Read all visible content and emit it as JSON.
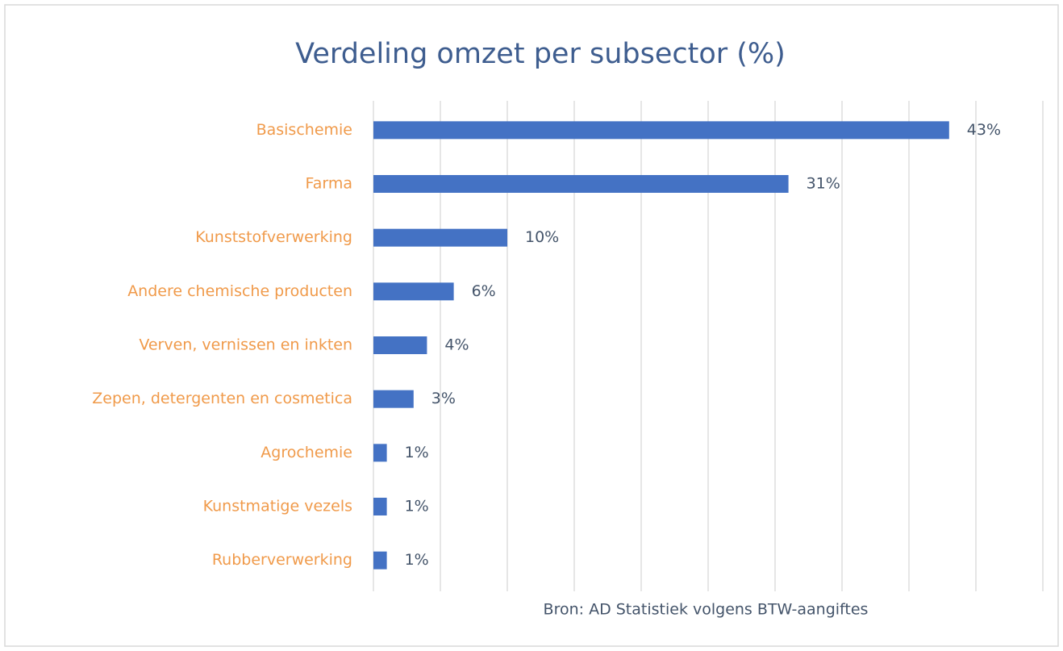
{
  "chart_data": {
    "type": "bar",
    "orientation": "horizontal",
    "title": "Verdeling omzet per subsector (%)",
    "categories": [
      "Basischemie",
      "Farma",
      "Kunststofverwerking",
      "Andere chemische producten",
      "Verven, vernissen en inkten",
      "Zepen, detergenten en cosmetica",
      "Agrochemie",
      "Kunstmatige vezels",
      "Rubberverwerking"
    ],
    "values": [
      43,
      31,
      10,
      6,
      4,
      3,
      1,
      1,
      1
    ],
    "value_labels": [
      "43%",
      "31%",
      "10%",
      "6%",
      "4%",
      "3%",
      "1%",
      "1%",
      "1%"
    ],
    "color": "#4472c4",
    "xlim": [
      0,
      50
    ],
    "xticks": [
      0,
      5,
      10,
      15,
      20,
      25,
      30,
      35,
      40,
      45,
      50
    ],
    "grid": true,
    "source": "Bron: AD Statistiek volgens BTW-aangiftes"
  }
}
